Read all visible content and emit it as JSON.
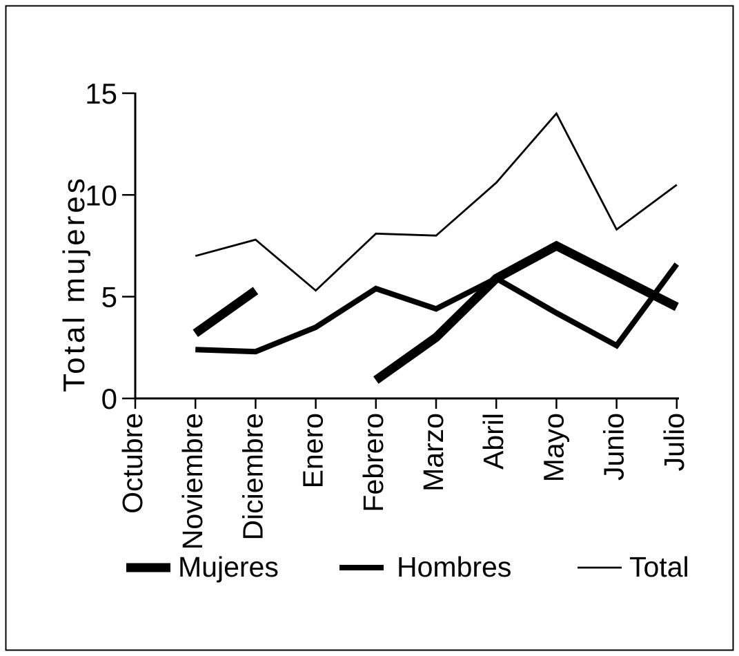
{
  "figure": {
    "background_color": "#ffffff",
    "frame_color": "#000000",
    "line_color": "#000000"
  },
  "chart_data": {
    "type": "line",
    "title": "",
    "xlabel": "",
    "ylabel": "Total mujeres",
    "ylim": [
      0,
      15
    ],
    "yticks": [
      0,
      5,
      10,
      15
    ],
    "grid": false,
    "legend_position": "bottom",
    "categories": [
      "Octubre",
      "Noviembre",
      "Diciembre",
      "Enero",
      "Febrero",
      "Marzo",
      "Abril",
      "Mayo",
      "Junio",
      "Julio"
    ],
    "series": [
      {
        "name": "Mujeres",
        "line_weight": "thick",
        "stroke_width": 13,
        "color": "#000000",
        "values": [
          null,
          3.2,
          5.3,
          null,
          0.9,
          3,
          5.9,
          7.5,
          6,
          4.5
        ]
      },
      {
        "name": "Hombres",
        "line_weight": "medium",
        "stroke_width": 8,
        "color": "#000000",
        "values": [
          null,
          2.4,
          2.3,
          3.5,
          5.4,
          4.4,
          5.9,
          4.2,
          2.6,
          6.6
        ]
      },
      {
        "name": "Total",
        "line_weight": "thin",
        "stroke_width": 2.8,
        "color": "#000000",
        "values": [
          null,
          7,
          7.8,
          5.3,
          8.1,
          8,
          10.6,
          14,
          8.3,
          10.5
        ]
      }
    ]
  }
}
